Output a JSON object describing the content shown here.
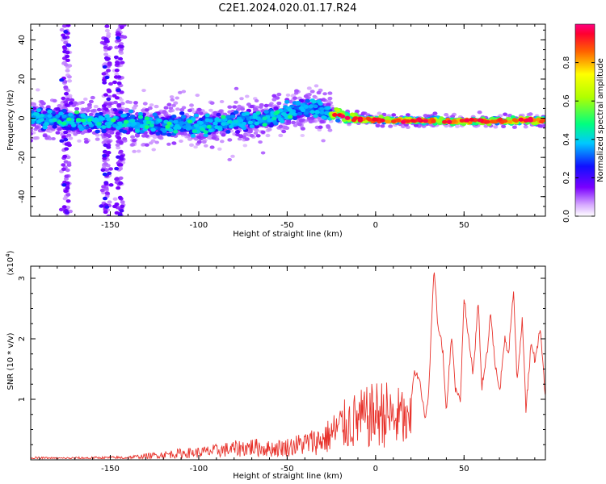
{
  "figure_title": "C2E1.2024.020.01.17.R24",
  "colorbar": {
    "label": "Normalized spectral amplitude",
    "ticks": [
      0.0,
      0.2,
      0.4,
      0.6,
      0.8
    ],
    "tick_labels": [
      "0.0",
      "0.2",
      "0.4",
      "0.6",
      "0.8"
    ],
    "range": [
      0,
      1
    ]
  },
  "chart_data": [
    {
      "type": "heatmap",
      "xlabel": "Height of straight line (km)",
      "ylabel": "Frequency (Hz)",
      "xlim": [
        -195,
        96
      ],
      "ylim": [
        -50,
        48
      ],
      "xticks": [
        -150,
        -100,
        -50,
        0,
        50
      ],
      "xtick_labels": [
        "-150",
        "-100",
        "-50",
        "0",
        "50"
      ],
      "yticks": [
        -40,
        -20,
        0,
        20,
        40
      ],
      "ytick_labels": [
        "-40",
        "-20",
        "0",
        "20",
        "40"
      ],
      "ridge": {
        "x": [
          -195,
          -150,
          -100,
          -60,
          -38,
          -25,
          -15,
          0,
          50,
          96
        ],
        "freq": [
          0,
          -2,
          -4,
          0,
          6,
          3,
          0,
          -1,
          -1.5,
          -1
        ]
      },
      "broadband_noise_x": [
        -175,
        -152,
        -145
      ]
    },
    {
      "type": "line",
      "xlabel": "Height of straight line (km)",
      "ylabel": "SNR (10 * v/v)",
      "y_multiplier_label": "(x10",
      "y_multiplier_exponent": "4",
      "y_multiplier_close": ")",
      "xlim": [
        -195,
        96
      ],
      "ylim": [
        0,
        3.2
      ],
      "xticks": [
        -150,
        -100,
        -50,
        0,
        50
      ],
      "xtick_labels": [
        "-150",
        "-100",
        "-50",
        "0",
        "50"
      ],
      "yticks": [
        1,
        2,
        3
      ],
      "ytick_labels": [
        "1",
        "2",
        "3"
      ],
      "series": [
        {
          "color": "#e8332c",
          "x": [
            -195,
            -180,
            -160,
            -140,
            -125,
            -110,
            -100,
            -90,
            -80,
            -70,
            -60,
            -50,
            -45,
            -40,
            -35,
            -30,
            -25,
            -20,
            -15,
            -10,
            -5,
            0,
            5,
            10,
            15,
            18,
            20,
            22,
            25,
            28,
            30,
            33,
            35,
            38,
            40,
            43,
            45,
            48,
            50,
            53,
            55,
            58,
            60,
            63,
            65,
            68,
            70,
            73,
            75,
            78,
            80,
            83,
            85,
            88,
            90,
            93,
            96
          ],
          "y": [
            0.05,
            0.04,
            0.05,
            0.06,
            0.12,
            0.18,
            0.2,
            0.25,
            0.3,
            0.35,
            0.3,
            0.35,
            0.4,
            0.45,
            0.5,
            0.55,
            0.7,
            0.9,
            1.0,
            1.1,
            1.15,
            1.25,
            1.3,
            1.1,
            1.2,
            0.9,
            1.0,
            1.45,
            1.3,
            0.7,
            1.1,
            3.2,
            2.3,
            1.8,
            0.8,
            2.1,
            1.2,
            1.0,
            2.7,
            1.9,
            1.4,
            2.6,
            1.2,
            1.8,
            2.4,
            1.5,
            1.1,
            2.0,
            1.7,
            2.8,
            1.3,
            2.3,
            0.8,
            2.0,
            1.6,
            2.2,
            1.0
          ]
        }
      ]
    }
  ]
}
